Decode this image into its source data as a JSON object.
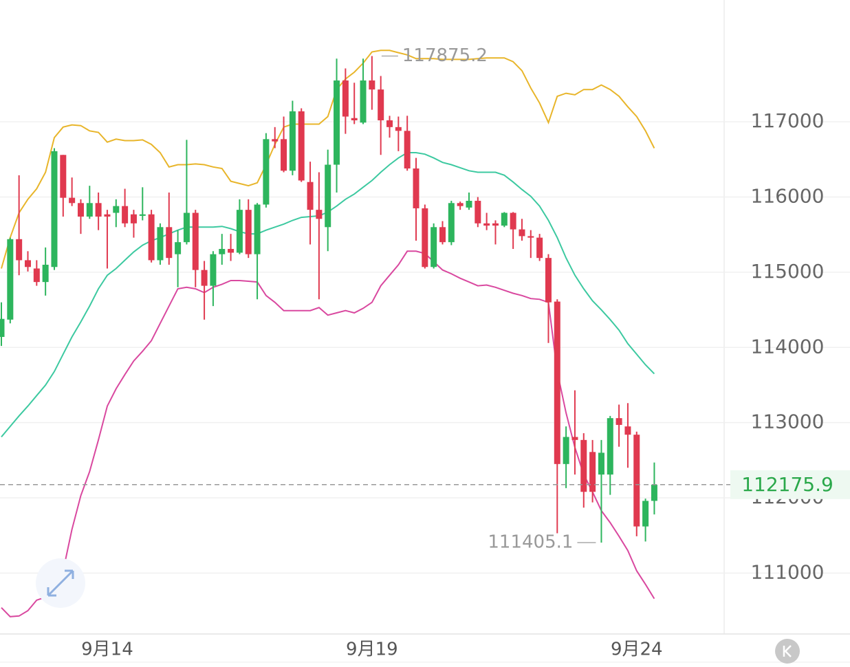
{
  "chart_data": {
    "type": "candlestick",
    "categories": [
      null,
      null,
      null,
      null,
      null,
      null,
      null,
      null,
      null,
      null,
      null,
      null,
      "9月14",
      null,
      null,
      null,
      null,
      null,
      null,
      null,
      null,
      null,
      null,
      null,
      null,
      null,
      null,
      null,
      null,
      null,
      null,
      null,
      null,
      null,
      null,
      null,
      null,
      null,
      null,
      null,
      null,
      null,
      "9月19",
      null,
      null,
      null,
      null,
      null,
      null,
      null,
      null,
      null,
      null,
      null,
      null,
      null,
      null,
      null,
      null,
      null,
      null,
      null,
      null,
      null,
      null,
      null,
      null,
      null,
      null,
      null,
      null,
      null,
      "9月24",
      null,
      null
    ],
    "open": [
      114140,
      114370,
      115440,
      115160,
      115050,
      114870,
      115070,
      116560,
      115990,
      115920,
      115740,
      115920,
      115770,
      115790,
      115880,
      115770,
      115750,
      115770,
      115160,
      115600,
      115240,
      115400,
      115790,
      115030,
      114820,
      115240,
      115310,
      115260,
      115830,
      115240,
      115900,
      116770,
      116770,
      116350,
      117140,
      116200,
      115830,
      115600,
      116430,
      117550,
      117050,
      116990,
      117550,
      117430,
      117020,
      116930,
      116880,
      116380,
      115850,
      115070,
      115600,
      115400,
      115920,
      115860,
      115950,
      115650,
      115650,
      115620,
      115790,
      115570,
      115480,
      115460,
      115190,
      114610,
      112450,
      112810,
      112770,
      112610,
      112310,
      112310,
      113060,
      112950,
      112840,
      111620,
      111960
    ],
    "high": [
      114600,
      115460,
      116290,
      115280,
      115160,
      115330,
      116650,
      116560,
      116260,
      115970,
      116150,
      116060,
      115830,
      115970,
      116110,
      115830,
      116130,
      115830,
      115650,
      116060,
      115560,
      116760,
      115830,
      115150,
      115280,
      115510,
      115510,
      115970,
      115970,
      115920,
      116850,
      116930,
      117070,
      117280,
      117180,
      116470,
      116330,
      116630,
      117840,
      117710,
      117520,
      117840,
      117875.2,
      117610,
      117080,
      117070,
      117080,
      116520,
      115900,
      115650,
      115680,
      115950,
      115940,
      116060,
      116000,
      115790,
      115690,
      115800,
      115800,
      115710,
      115560,
      115510,
      115240,
      114640,
      112950,
      113430,
      112860,
      112770,
      112770,
      113090,
      113240,
      113260,
      112880,
      111990,
      112470
    ],
    "low": [
      114020,
      114320,
      114960,
      115010,
      114820,
      114690,
      115030,
      115740,
      115880,
      115510,
      115710,
      115560,
      115050,
      115600,
      115600,
      115460,
      115690,
      115130,
      115100,
      115100,
      114800,
      115370,
      114800,
      114370,
      114550,
      115100,
      115150,
      115240,
      115190,
      114640,
      115860,
      116650,
      116330,
      116290,
      116200,
      115370,
      114640,
      115280,
      116060,
      116840,
      116970,
      116970,
      117160,
      116560,
      116790,
      116610,
      116350,
      115420,
      115050,
      115050,
      115370,
      115360,
      115830,
      115830,
      115600,
      115560,
      115370,
      115600,
      115310,
      115420,
      115190,
      115150,
      114060,
      111530,
      112130,
      112310,
      111870,
      111940,
      111405.1,
      112040,
      112680,
      112400,
      111490,
      111420,
      111780
    ],
    "close": [
      114380,
      115440,
      115160,
      115070,
      114870,
      115100,
      116610,
      115990,
      115920,
      115740,
      115920,
      115740,
      115740,
      115880,
      115650,
      115650,
      115770,
      115160,
      115600,
      115190,
      115400,
      115790,
      115030,
      114820,
      115240,
      115310,
      115260,
      115830,
      115240,
      115900,
      116770,
      116740,
      116350,
      117140,
      116220,
      115830,
      115710,
      116430,
      117550,
      117070,
      117020,
      117550,
      117430,
      117020,
      116930,
      116880,
      116380,
      115850,
      115070,
      115600,
      115400,
      115920,
      115880,
      115950,
      115650,
      115620,
      115620,
      115790,
      115570,
      115480,
      115460,
      115190,
      114600,
      112450,
      112810,
      112770,
      112080,
      112080,
      112600,
      113060,
      112970,
      112840,
      111620,
      111960,
      112175.9
    ],
    "up_color": "#2db55d",
    "down_color": "#e0394f",
    "series": [
      {
        "color": "#e8b52a",
        "values": [
          115050,
          115460,
          115790,
          115970,
          116110,
          116330,
          116790,
          116930,
          116960,
          116950,
          116880,
          116860,
          116730,
          116770,
          116750,
          116750,
          116760,
          116700,
          116590,
          116400,
          116430,
          116430,
          116440,
          116430,
          116400,
          116380,
          116210,
          116180,
          116150,
          116190,
          116430,
          116700,
          116930,
          116970,
          116970,
          116970,
          116970,
          117070,
          117430,
          117570,
          117660,
          117780,
          117930,
          117950,
          117950,
          117920,
          117890,
          117840,
          117840,
          117840,
          117830,
          117830,
          117830,
          117830,
          117840,
          117850,
          117850,
          117850,
          117800,
          117680,
          117450,
          117250,
          116990,
          117340,
          117380,
          117360,
          117430,
          117430,
          117490,
          117430,
          117340,
          117200,
          117070,
          116880,
          116650
        ]
      },
      {
        "color": "#3cc9a0",
        "values": [
          112810,
          112950,
          113090,
          113220,
          113360,
          113500,
          113680,
          113910,
          114140,
          114340,
          114550,
          114780,
          114960,
          115050,
          115160,
          115270,
          115360,
          115420,
          115460,
          115510,
          115560,
          115600,
          115600,
          115600,
          115600,
          115610,
          115580,
          115540,
          115510,
          115510,
          115560,
          115600,
          115640,
          115690,
          115730,
          115740,
          115750,
          115800,
          115880,
          115970,
          116040,
          116130,
          116220,
          116330,
          116430,
          116520,
          116590,
          116590,
          116570,
          116520,
          116460,
          116430,
          116390,
          116350,
          116330,
          116330,
          116330,
          116290,
          116200,
          116100,
          116010,
          115880,
          115690,
          115460,
          115190,
          114960,
          114780,
          114620,
          114500,
          114370,
          114230,
          114050,
          113910,
          113770,
          113650
        ]
      },
      {
        "color": "#d9489f",
        "values": [
          110540,
          110420,
          110430,
          110500,
          110640,
          110680,
          110660,
          111030,
          111580,
          112030,
          112350,
          112770,
          113220,
          113450,
          113640,
          113820,
          113950,
          114090,
          114320,
          114550,
          114780,
          114800,
          114780,
          114730,
          114800,
          114840,
          114890,
          114890,
          114880,
          114870,
          114690,
          114600,
          114490,
          114490,
          114490,
          114490,
          114530,
          114430,
          114460,
          114490,
          114460,
          114520,
          114600,
          114820,
          114960,
          115100,
          115280,
          115280,
          115250,
          115140,
          115030,
          114980,
          114920,
          114870,
          114820,
          114830,
          114800,
          114760,
          114720,
          114690,
          114650,
          114640,
          114600,
          113680,
          113130,
          112670,
          112310,
          112080,
          111830,
          111670,
          111490,
          111300,
          111030,
          110850,
          110660
        ]
      }
    ],
    "ylim": [
      110190,
      118620
    ],
    "yticks": [
      111000,
      112000,
      113000,
      114000,
      115000,
      116000,
      117000
    ],
    "grid": true
  }
}
